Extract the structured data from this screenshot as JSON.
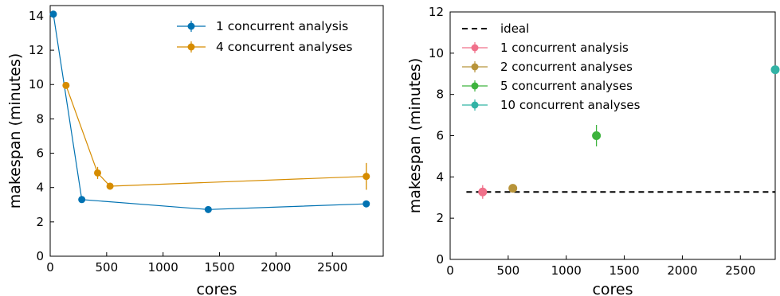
{
  "chart_data": [
    {
      "type": "line",
      "xlabel": "cores",
      "ylabel": "makespan (minutes)",
      "xlim": [
        0,
        2950
      ],
      "ylim": [
        0,
        14.6
      ],
      "xticks": [
        0,
        500,
        1000,
        1500,
        2000,
        2500
      ],
      "yticks": [
        0,
        2,
        4,
        6,
        8,
        10,
        12,
        14
      ],
      "legend_position": "top-right",
      "series": [
        {
          "name": "1 concurrent analysis",
          "color": "#0072b2",
          "x": [
            28,
            280,
            1400,
            2800
          ],
          "y": [
            14.1,
            3.3,
            2.72,
            3.05
          ],
          "error": [
            0.1,
            0.08,
            0.08,
            0.1
          ]
        },
        {
          "name": "4 concurrent analyses",
          "color": "#d68c00",
          "x": [
            140,
            420,
            530,
            2800
          ],
          "y": [
            9.95,
            4.85,
            4.08,
            4.65
          ],
          "error": [
            0.1,
            0.35,
            0.2,
            0.78
          ]
        }
      ]
    },
    {
      "type": "scatter",
      "xlabel": "cores",
      "ylabel": "makespan (minutes)",
      "xlim": [
        0,
        2800
      ],
      "ylim": [
        0,
        12
      ],
      "xticks": [
        0,
        500,
        1000,
        1500,
        2000,
        2500
      ],
      "yticks": [
        0,
        2,
        4,
        6,
        8,
        10,
        12
      ],
      "legend_position": "top-left",
      "reference_line": {
        "name": "ideal",
        "style": "dashed",
        "color": "#000000",
        "x": [
          140,
          2800
        ],
        "y": [
          3.27,
          3.27
        ]
      },
      "series": [
        {
          "name": "1 concurrent analysis",
          "color": "#f0708a",
          "x": [
            280
          ],
          "y": [
            3.27
          ],
          "error": [
            0.33
          ]
        },
        {
          "name": "2 concurrent analyses",
          "color": "#b8943a",
          "x": [
            540
          ],
          "y": [
            3.45
          ],
          "error": [
            0.15
          ]
        },
        {
          "name": "5 concurrent analyses",
          "color": "#3db33d",
          "x": [
            1260
          ],
          "y": [
            6.0
          ],
          "error": [
            0.52
          ]
        },
        {
          "name": "10 concurrent analyses",
          "color": "#32b3a5",
          "x": [
            2800
          ],
          "y": [
            9.2
          ],
          "error": [
            0.12
          ]
        }
      ]
    }
  ]
}
